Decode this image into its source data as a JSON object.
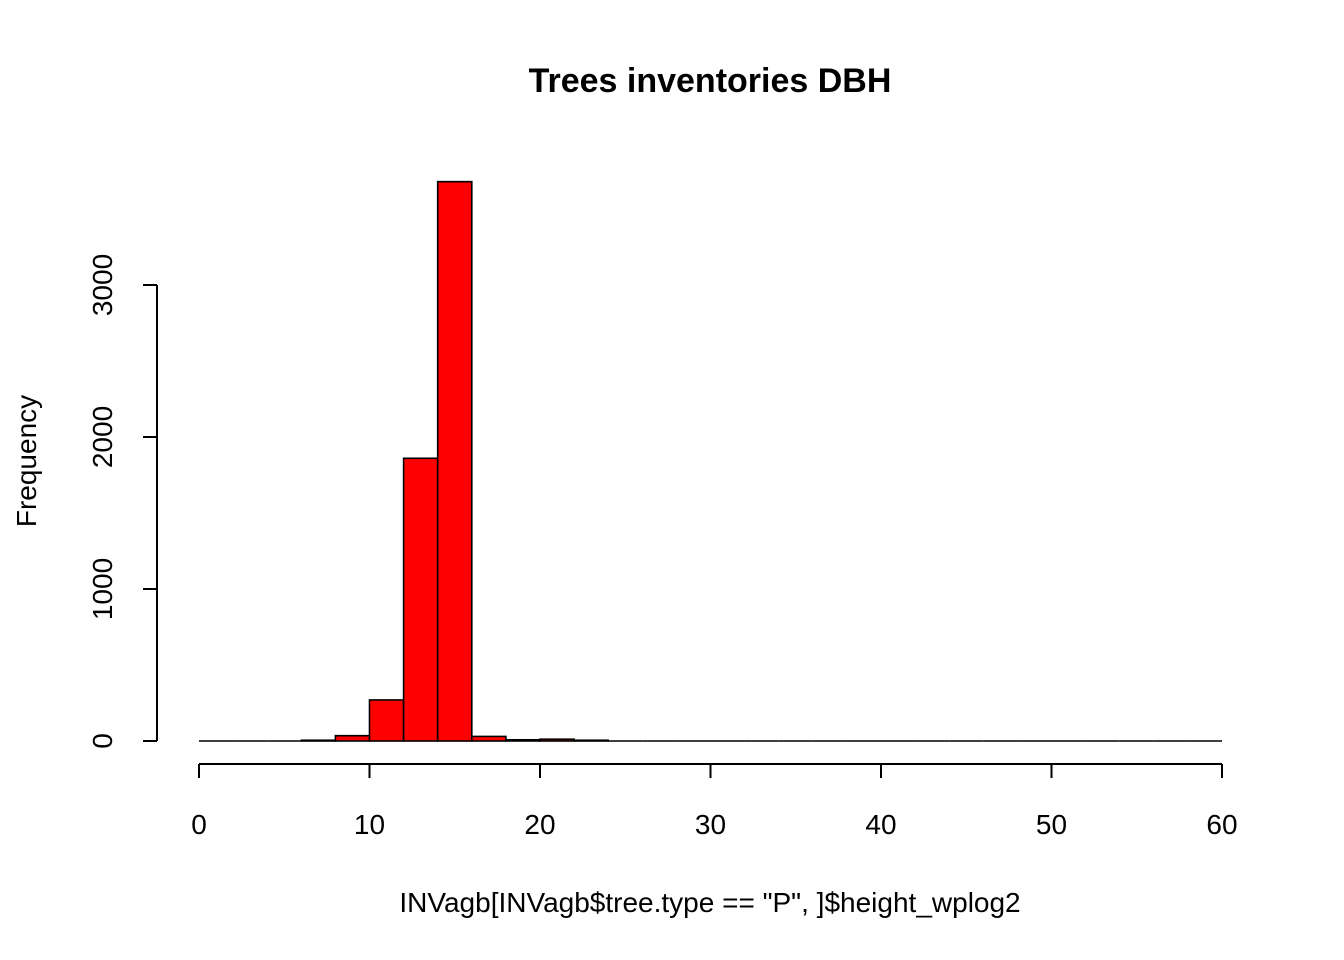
{
  "chart_data": {
    "type": "bar",
    "title": "Trees inventories DBH",
    "xlabel": "INVagb[INVagb$tree.type == \"P\", ]$height_wplog2",
    "ylabel": "Frequency",
    "bin_edges": [
      0,
      2,
      4,
      6,
      8,
      10,
      12,
      14,
      16,
      18,
      20,
      22,
      24,
      26,
      28,
      30,
      32,
      34,
      36,
      38,
      40,
      42,
      44,
      46,
      48,
      50,
      52,
      54,
      56,
      58,
      60
    ],
    "values": [
      0,
      0,
      0,
      5,
      35,
      270,
      1860,
      3680,
      30,
      8,
      12,
      5,
      0,
      0,
      0,
      0,
      0,
      0,
      0,
      0,
      0,
      0,
      0,
      0,
      0,
      0,
      0,
      0,
      0,
      0
    ],
    "xlim": [
      0,
      60
    ],
    "ylim": [
      0,
      3700
    ],
    "x_ticks": [
      0,
      10,
      20,
      30,
      40,
      50,
      60
    ],
    "y_ticks": [
      0,
      1000,
      2000,
      3000
    ],
    "bar_color": "#ff0000",
    "grid": false
  }
}
